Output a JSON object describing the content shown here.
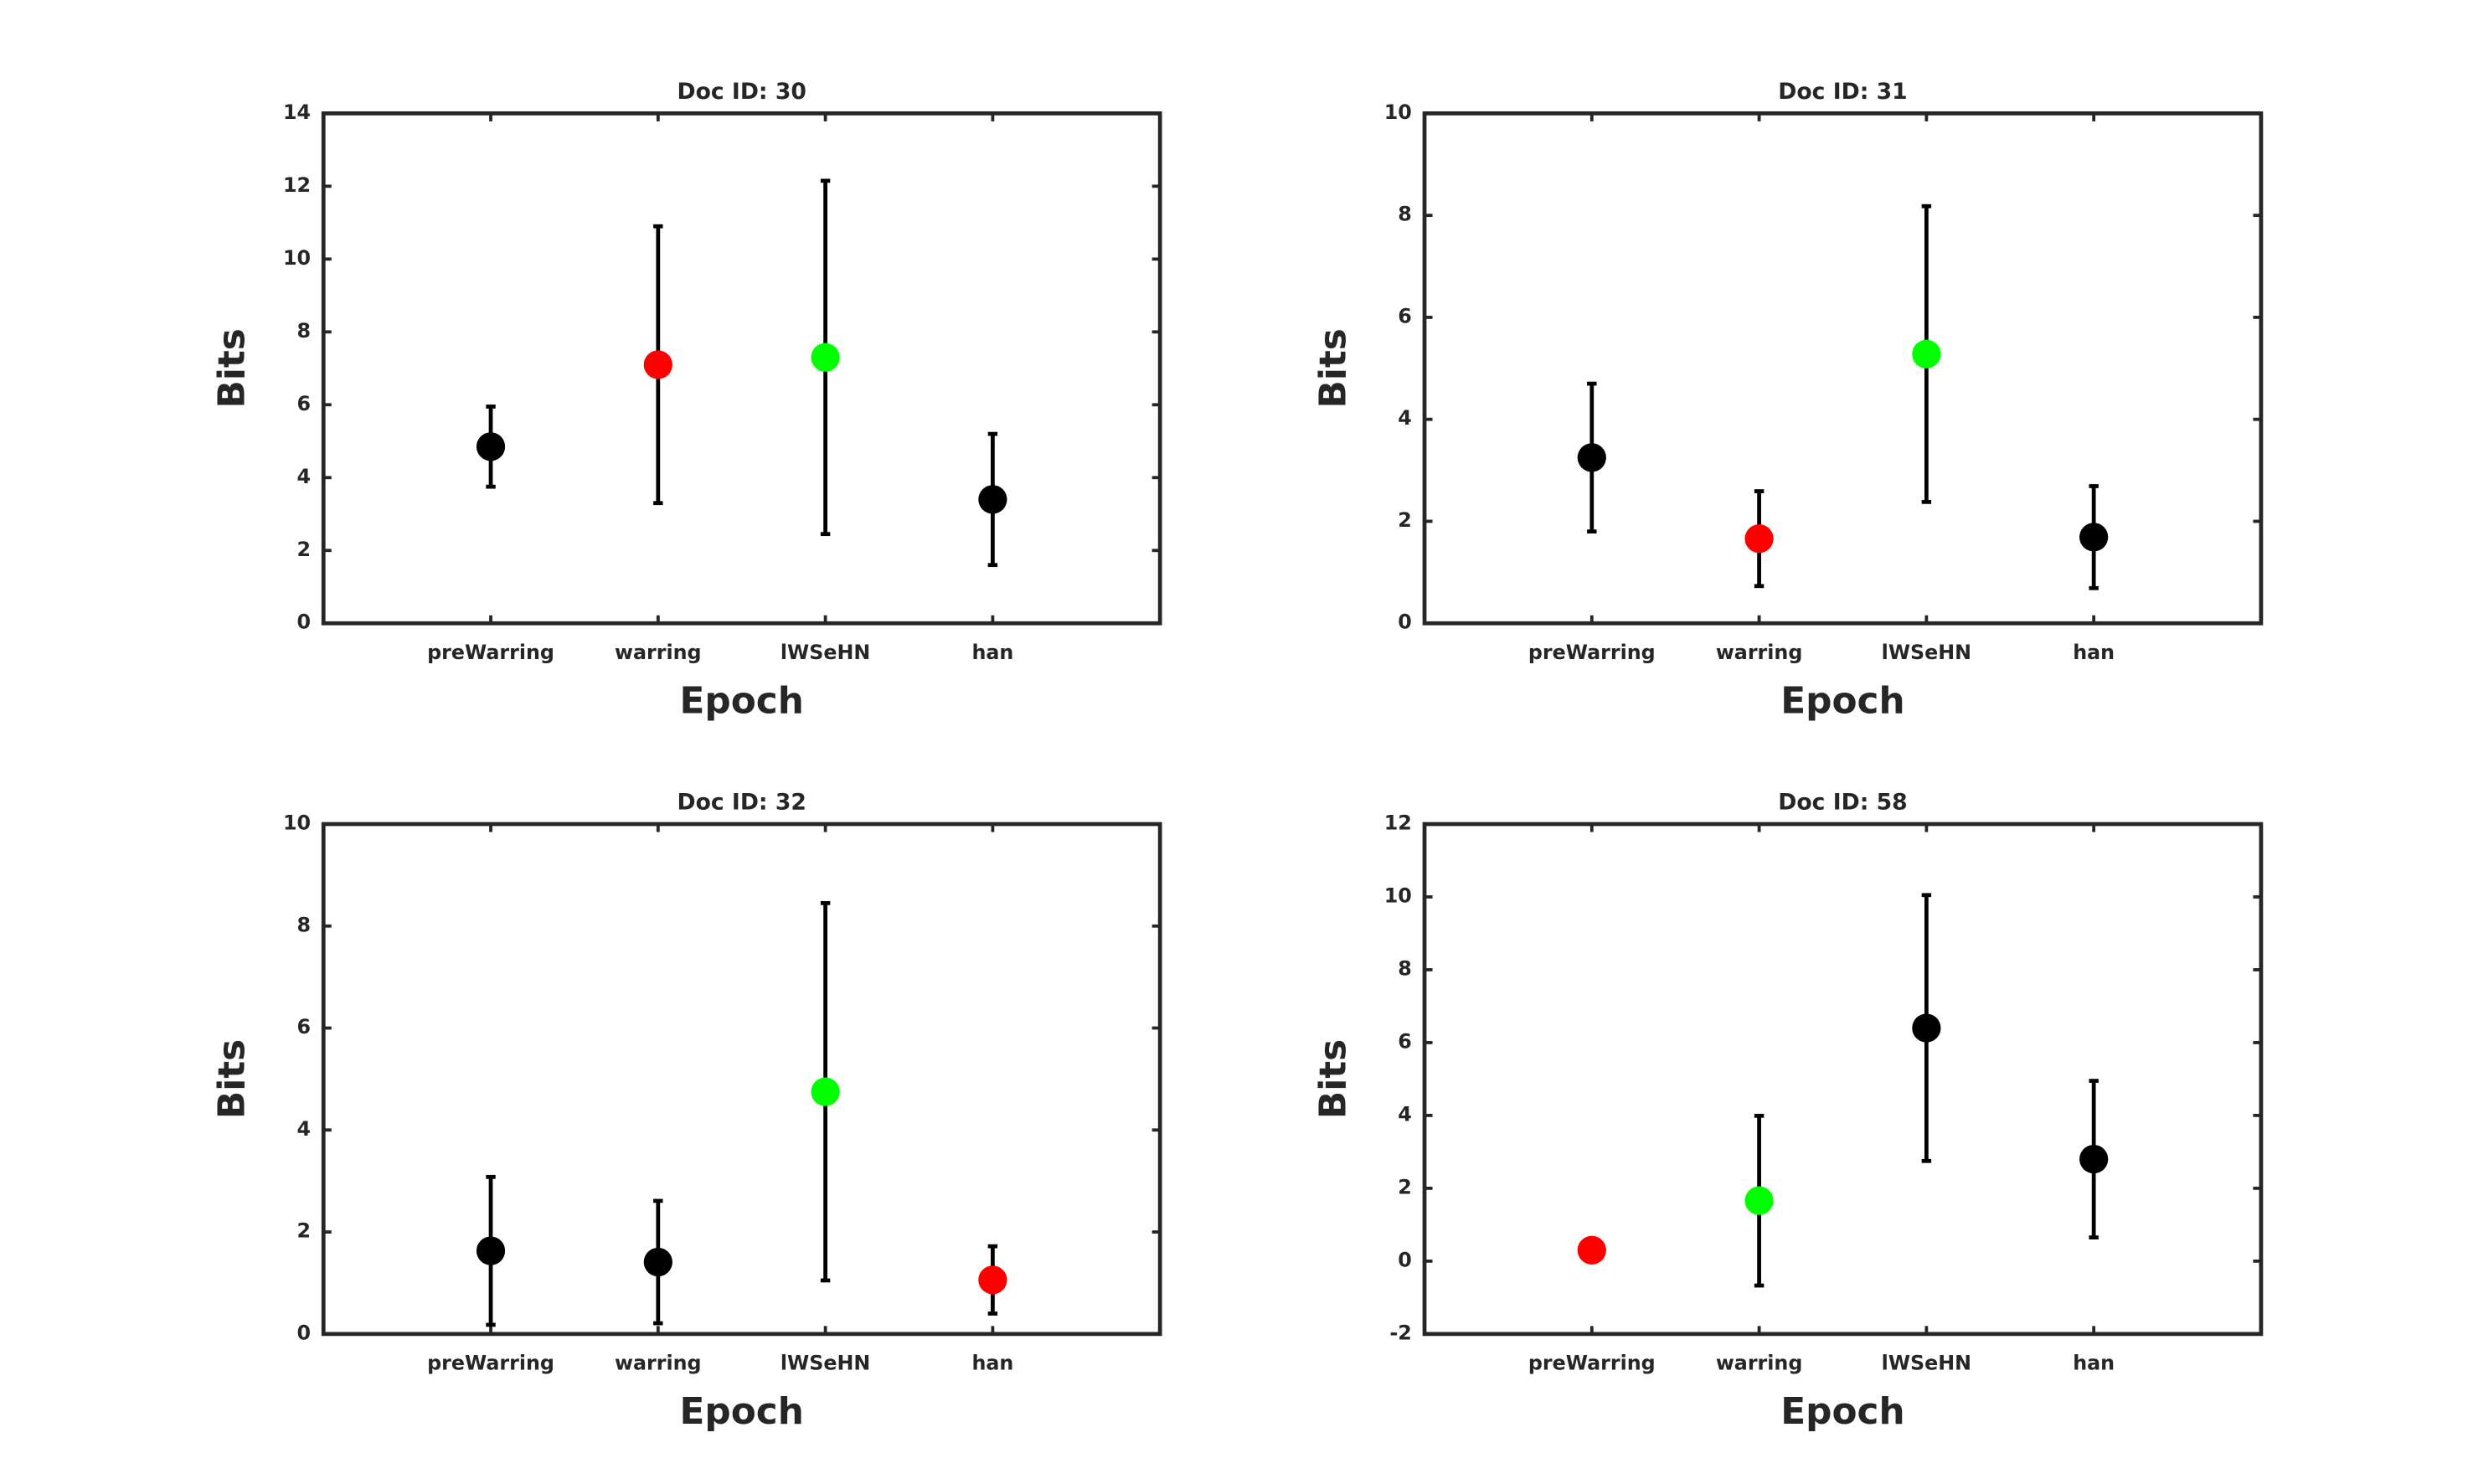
{
  "chart_data": [
    {
      "type": "errorbar",
      "title": "Doc ID: 30",
      "xlabel": "Epoch",
      "ylabel": "Bits",
      "categories": [
        "preWarring",
        "warring",
        "lWSeHN",
        "han"
      ],
      "values": [
        4.85,
        7.1,
        7.3,
        3.4
      ],
      "errors": [
        1.1,
        3.8,
        4.85,
        1.8
      ],
      "colors": [
        "#000000",
        "#ff0000",
        "#00ff00",
        "#000000"
      ],
      "ylim": [
        0,
        14
      ],
      "yticks": [
        0,
        2,
        4,
        6,
        8,
        10,
        12,
        14
      ]
    },
    {
      "type": "errorbar",
      "title": "Doc ID: 31",
      "xlabel": "Epoch",
      "ylabel": "Bits",
      "categories": [
        "preWarring",
        "warring",
        "lWSeHN",
        "han"
      ],
      "values": [
        3.25,
        1.66,
        5.28,
        1.69
      ],
      "errors": [
        1.45,
        0.93,
        2.9,
        1.0
      ],
      "colors": [
        "#000000",
        "#ff0000",
        "#00ff00",
        "#000000"
      ],
      "ylim": [
        0,
        10
      ],
      "yticks": [
        0,
        2,
        4,
        6,
        8,
        10
      ]
    },
    {
      "type": "errorbar",
      "title": "Doc ID: 32",
      "xlabel": "Epoch",
      "ylabel": "Bits",
      "categories": [
        "preWarring",
        "warring",
        "lWSeHN",
        "han"
      ],
      "values": [
        1.63,
        1.41,
        4.75,
        1.06
      ],
      "errors": [
        1.45,
        1.2,
        3.7,
        0.66
      ],
      "colors": [
        "#000000",
        "#000000",
        "#00ff00",
        "#ff0000"
      ],
      "ylim": [
        0,
        10
      ],
      "yticks": [
        0,
        2,
        4,
        6,
        8,
        10
      ]
    },
    {
      "type": "errorbar",
      "title": "Doc ID: 58",
      "xlabel": "Epoch",
      "ylabel": "Bits",
      "categories": [
        "preWarring",
        "warring",
        "lWSeHN",
        "han"
      ],
      "values": [
        0.3,
        1.66,
        6.4,
        2.8
      ],
      "errors": [
        0.2,
        2.33,
        3.65,
        2.15
      ],
      "colors": [
        "#ff0000",
        "#00ff00",
        "#000000",
        "#000000"
      ],
      "ylim": [
        -2,
        12
      ],
      "yticks": [
        -2,
        0,
        2,
        4,
        6,
        8,
        10,
        12
      ]
    }
  ]
}
